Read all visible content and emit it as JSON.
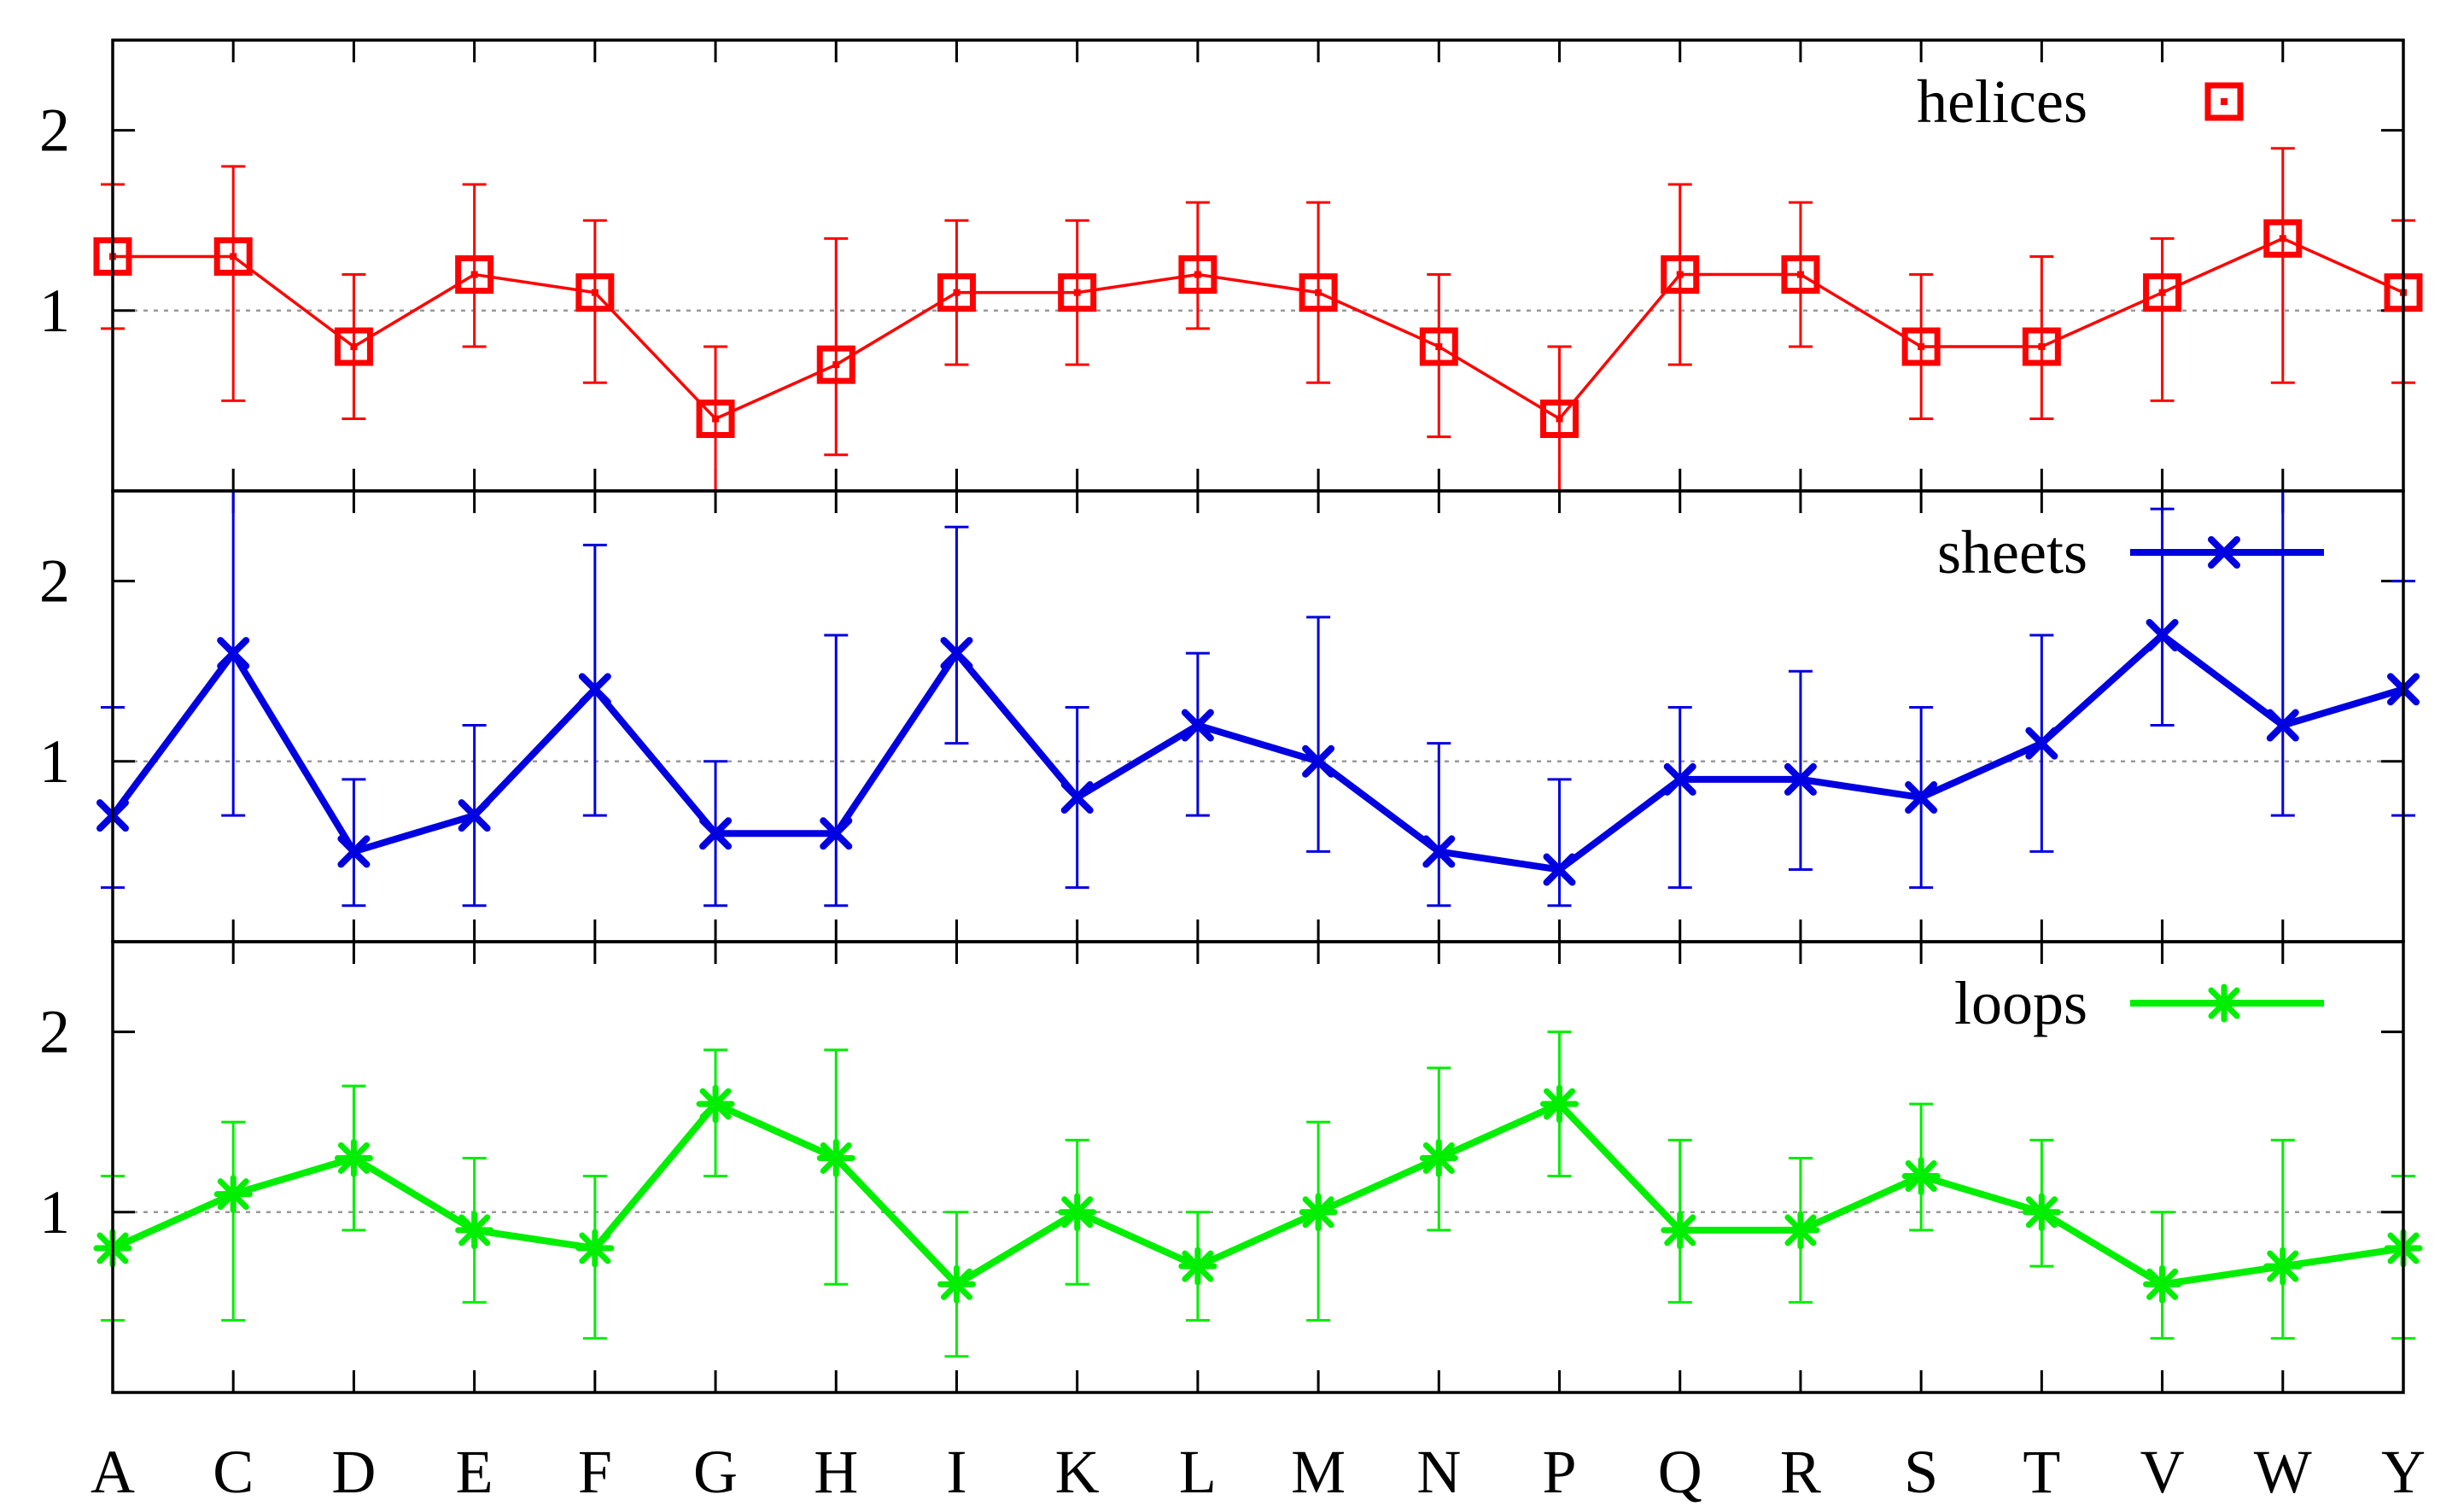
{
  "chart_data": {
    "type": "line",
    "categories": [
      "A",
      "C",
      "D",
      "E",
      "F",
      "G",
      "H",
      "I",
      "K",
      "L",
      "M",
      "N",
      "P",
      "Q",
      "R",
      "S",
      "T",
      "V",
      "W",
      "Y"
    ],
    "ylim": [
      0,
      2.5
    ],
    "yticks": [
      1,
      2
    ],
    "reference_line": 1,
    "panels": [
      {
        "name": "helices",
        "label": "helices",
        "color": "#ff0000",
        "marker": "square",
        "line_style": "thin",
        "legend_placement": "top-right",
        "values": [
          1.3,
          1.3,
          0.8,
          1.2,
          1.1,
          0.4,
          0.7,
          1.1,
          1.1,
          1.2,
          1.1,
          0.8,
          0.4,
          1.2,
          1.2,
          0.8,
          0.8,
          1.1,
          1.4,
          1.1
        ],
        "err_low": [
          0.9,
          0.5,
          0.4,
          0.8,
          0.6,
          0.0,
          0.2,
          0.7,
          0.7,
          0.9,
          0.6,
          0.3,
          0.0,
          0.7,
          0.8,
          0.4,
          0.4,
          0.5,
          0.6,
          0.6
        ],
        "err_high": [
          1.7,
          1.8,
          1.2,
          1.7,
          1.5,
          0.8,
          1.4,
          1.5,
          1.5,
          1.6,
          1.6,
          1.2,
          0.8,
          1.7,
          1.6,
          1.2,
          1.3,
          1.4,
          1.9,
          1.5
        ]
      },
      {
        "name": "sheets",
        "label": "sheets",
        "color": "#0000e0",
        "marker": "x",
        "line_style": "thick",
        "legend_placement": "top-right",
        "values": [
          0.7,
          1.6,
          0.5,
          0.7,
          1.4,
          0.6,
          0.6,
          1.6,
          0.8,
          1.2,
          1.0,
          0.5,
          0.4,
          0.9,
          0.9,
          0.8,
          1.1,
          1.7,
          1.2,
          1.4
        ],
        "err_low": [
          0.3,
          0.7,
          0.2,
          0.2,
          0.7,
          0.2,
          0.2,
          1.1,
          0.3,
          0.7,
          0.5,
          0.2,
          0.2,
          0.3,
          0.4,
          0.3,
          0.5,
          1.2,
          0.7,
          0.7
        ],
        "err_high": [
          1.3,
          2.5,
          0.9,
          1.2,
          2.2,
          1.0,
          1.7,
          2.3,
          1.3,
          1.6,
          1.8,
          1.1,
          0.9,
          1.3,
          1.5,
          1.3,
          1.7,
          2.4,
          2.5,
          2.0
        ]
      },
      {
        "name": "loops",
        "label": "loops",
        "color": "#00ee00",
        "marker": "star",
        "line_style": "thick",
        "legend_placement": "top-right",
        "values": [
          0.8,
          1.1,
          1.3,
          0.9,
          0.8,
          1.6,
          1.3,
          0.6,
          1.0,
          0.7,
          1.0,
          1.3,
          1.6,
          0.9,
          0.9,
          1.2,
          1.0,
          0.6,
          0.7,
          0.8
        ],
        "err_low": [
          0.4,
          0.4,
          0.9,
          0.5,
          0.3,
          1.2,
          0.6,
          0.2,
          0.6,
          0.4,
          0.4,
          0.9,
          1.2,
          0.5,
          0.5,
          0.9,
          0.7,
          0.3,
          0.3,
          0.3
        ],
        "err_high": [
          1.2,
          1.5,
          1.7,
          1.3,
          1.2,
          1.9,
          1.9,
          1.0,
          1.4,
          1.0,
          1.5,
          1.8,
          2.0,
          1.4,
          1.3,
          1.6,
          1.4,
          1.0,
          1.4,
          1.2
        ]
      }
    ]
  }
}
